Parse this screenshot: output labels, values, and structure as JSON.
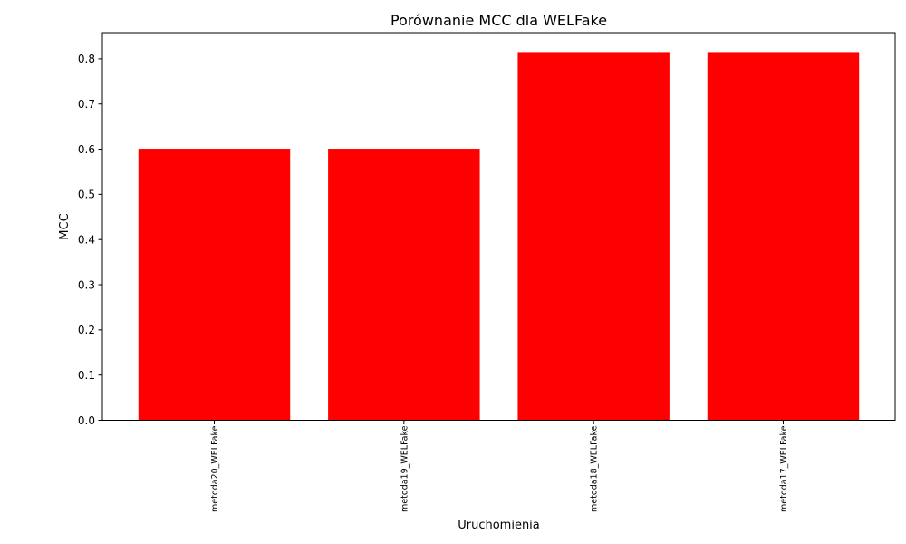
{
  "chart_data": {
    "type": "bar",
    "title": "Porównanie MCC dla WELFake",
    "xlabel": "Uruchomienia",
    "ylabel": "MCC",
    "categories": [
      "metoda20_WELFake",
      "metoda19_WELFake",
      "metoda18_WELFake",
      "metoda17_WELFake"
    ],
    "series": [
      {
        "values": [
          0.601,
          0.601,
          0.815,
          0.815
        ]
      }
    ],
    "ylim": [
      0,
      0.858
    ],
    "yticks": [
      "0.0",
      "0.1",
      "0.2",
      "0.3",
      "0.4",
      "0.5",
      "0.6",
      "0.7",
      "0.8"
    ],
    "bar_color": "#ff0000",
    "grid": false,
    "xtick_rotation": "vertical"
  }
}
